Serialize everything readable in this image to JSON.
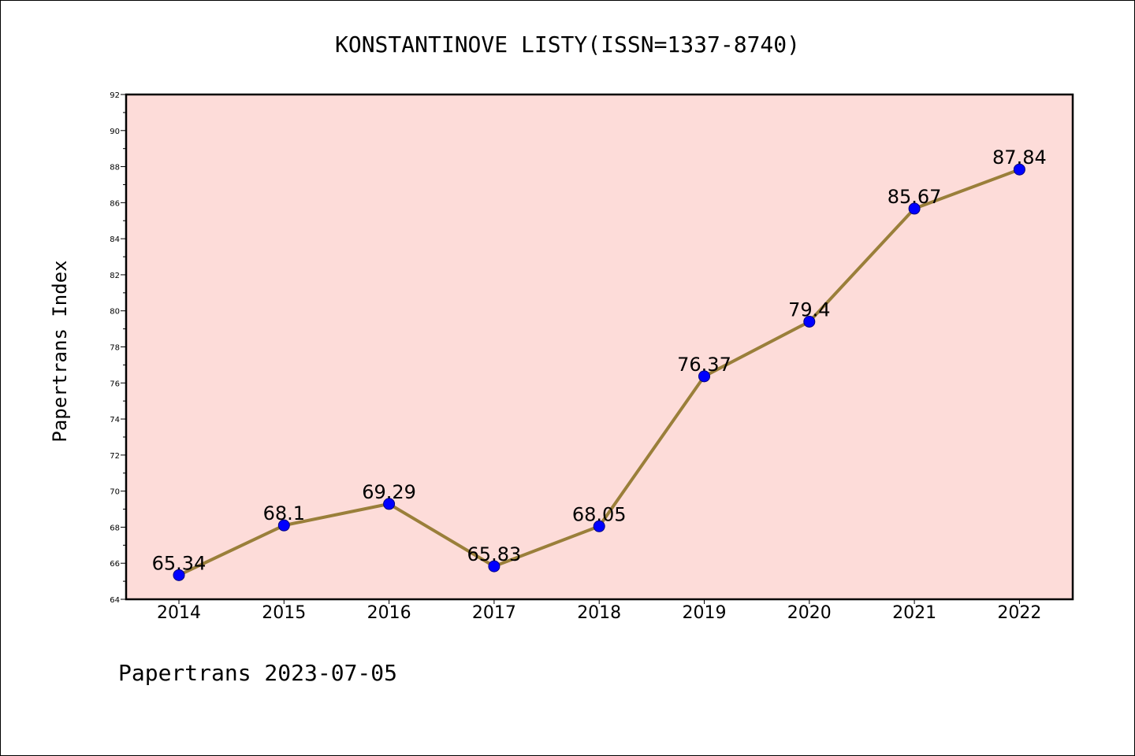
{
  "chart_data": {
    "type": "line",
    "title": "KONSTANTINOVE LISTY(ISSN=1337-8740)",
    "ylabel": "Papertrans Index",
    "xlabel": "",
    "footer": "Papertrans 2023-07-05",
    "categories": [
      "2014",
      "2015",
      "2016",
      "2017",
      "2018",
      "2019",
      "2020",
      "2021",
      "2022"
    ],
    "values": [
      65.34,
      68.1,
      69.29,
      65.83,
      68.05,
      76.37,
      79.4,
      85.67,
      87.84
    ],
    "data_labels": [
      "65.34",
      "68.1",
      "69.29",
      "65.83",
      "68.05",
      "76.37",
      "79.4",
      "85.67",
      "87.84"
    ],
    "ylim": [
      64,
      92
    ],
    "yticks": [
      "64",
      "66",
      "68",
      "70",
      "72",
      "74",
      "76",
      "78",
      "80",
      "82",
      "84",
      "86",
      "88",
      "90",
      "92"
    ],
    "grid": false,
    "colors": {
      "plot_background": "#fddcd9",
      "line": "#9a7f3a",
      "marker": "#0000ff",
      "marker_edge": "#000080"
    }
  }
}
